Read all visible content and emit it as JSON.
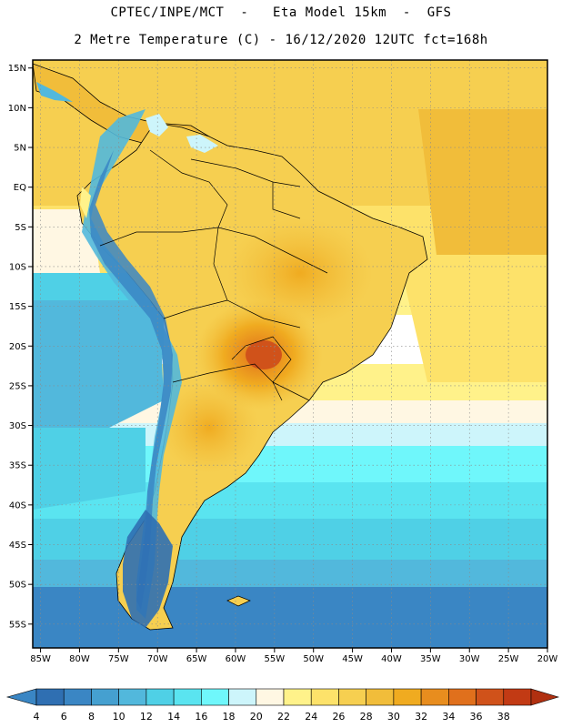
{
  "header": {
    "title_line1": "CPTEC/INPE/MCT  -   Eta Model 15km  -  GFS",
    "title_line2": "2 Metre Temperature (C) - 16/12/2020 12UTC fct=168h"
  },
  "map": {
    "lat_range": [
      -58,
      16
    ],
    "lon_range": [
      -86,
      -20
    ],
    "lat_ticks": [
      {
        "value": 15,
        "label": "15N"
      },
      {
        "value": 10,
        "label": "10N"
      },
      {
        "value": 5,
        "label": "5N"
      },
      {
        "value": 0,
        "label": "EQ"
      },
      {
        "value": -5,
        "label": "5S"
      },
      {
        "value": -10,
        "label": "10S"
      },
      {
        "value": -15,
        "label": "15S"
      },
      {
        "value": -20,
        "label": "20S"
      },
      {
        "value": -25,
        "label": "25S"
      },
      {
        "value": -30,
        "label": "30S"
      },
      {
        "value": -35,
        "label": "35S"
      },
      {
        "value": -40,
        "label": "40S"
      },
      {
        "value": -45,
        "label": "45S"
      },
      {
        "value": -50,
        "label": "50S"
      },
      {
        "value": -55,
        "label": "55S"
      }
    ],
    "lon_ticks": [
      {
        "value": -85,
        "label": "85W"
      },
      {
        "value": -80,
        "label": "80W"
      },
      {
        "value": -75,
        "label": "75W"
      },
      {
        "value": -70,
        "label": "70W"
      },
      {
        "value": -65,
        "label": "65W"
      },
      {
        "value": -60,
        "label": "60W"
      },
      {
        "value": -55,
        "label": "55W"
      },
      {
        "value": -50,
        "label": "50W"
      },
      {
        "value": -45,
        "label": "45W"
      },
      {
        "value": -40,
        "label": "40W"
      },
      {
        "value": -35,
        "label": "35W"
      },
      {
        "value": -30,
        "label": "30W"
      },
      {
        "value": -25,
        "label": "25W"
      },
      {
        "value": -20,
        "label": "20W"
      }
    ]
  },
  "colorbar": {
    "labels": [
      "4",
      "6",
      "8",
      "10",
      "12",
      "14",
      "16",
      "18",
      "20",
      "22",
      "24",
      "26",
      "28",
      "30",
      "32",
      "34",
      "36",
      "38"
    ],
    "colors": [
      "#2f6fb2",
      "#3a86c4",
      "#45a0d0",
      "#52b8dc",
      "#4fd0e6",
      "#5ae4f0",
      "#6ff7fb",
      "#cdf5fb",
      "#fff7e3",
      "#fff28a",
      "#fde26a",
      "#f6cf50",
      "#f1bd3a",
      "#f0ab20",
      "#e88d1e",
      "#e0701c",
      "#d0521a",
      "#c23a14"
    ]
  }
}
